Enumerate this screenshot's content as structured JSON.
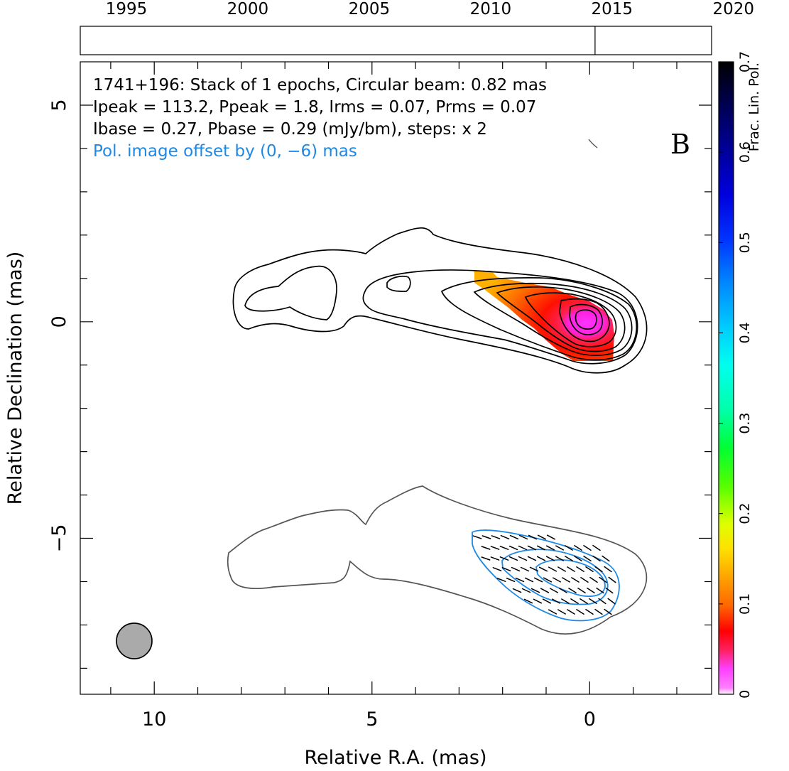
{
  "chart_data": {
    "type": "contour",
    "source_name": "1741+196",
    "annotation_lines": [
      "1741+196: Stack of 1 epochs, Circular beam: 0.82 mas",
      "Ipeak = 113.2, Ppeak = 1.8, Irms = 0.07, Prms = 0.07",
      "Ibase = 0.27, Pbase = 0.29 (mJy/bm), steps: x 2"
    ],
    "offset_note": "Pol. image offset by (0, −6) mas",
    "panel_letter": "B",
    "xlabel": "Relative R.A. (mas)",
    "ylabel": "Relative Declination (mas)",
    "xlim": [
      11.7,
      -2.8
    ],
    "ylim": [
      -8.6,
      6.0
    ],
    "x_ticks": [
      10,
      5,
      0
    ],
    "x_tick_labels": [
      "10",
      "5",
      "0"
    ],
    "y_ticks": [
      5,
      0,
      -5
    ],
    "y_tick_labels": [
      "5",
      "0",
      "−5"
    ],
    "timeline": {
      "years": [
        1995,
        2000,
        2005,
        2010,
        2015,
        2020
      ],
      "labels": [
        "1995",
        "2000",
        "2005",
        "2010",
        "2015",
        "2020"
      ],
      "range": [
        1993.1,
        2019.1
      ],
      "epoch_markers": [
        2014.3
      ]
    },
    "colorbar": {
      "label": "Frac. Lin. Pol.",
      "range": [
        0,
        0.7
      ],
      "ticks": [
        "0",
        "0.1",
        "0.2",
        "0.3",
        "0.4",
        "0.5",
        "0.6",
        "0.7"
      ]
    },
    "beam": {
      "diameter_mas": 0.82,
      "ra_mas": 10.5,
      "dec_mas": -7.4
    },
    "colors": {
      "stokes_i_contours": "#000000",
      "offset_i_contour": "#555555",
      "pol_contours": "#1e88e5",
      "beam_fill": "#aaaaaa",
      "accent_text": "#1e88e5"
    }
  }
}
